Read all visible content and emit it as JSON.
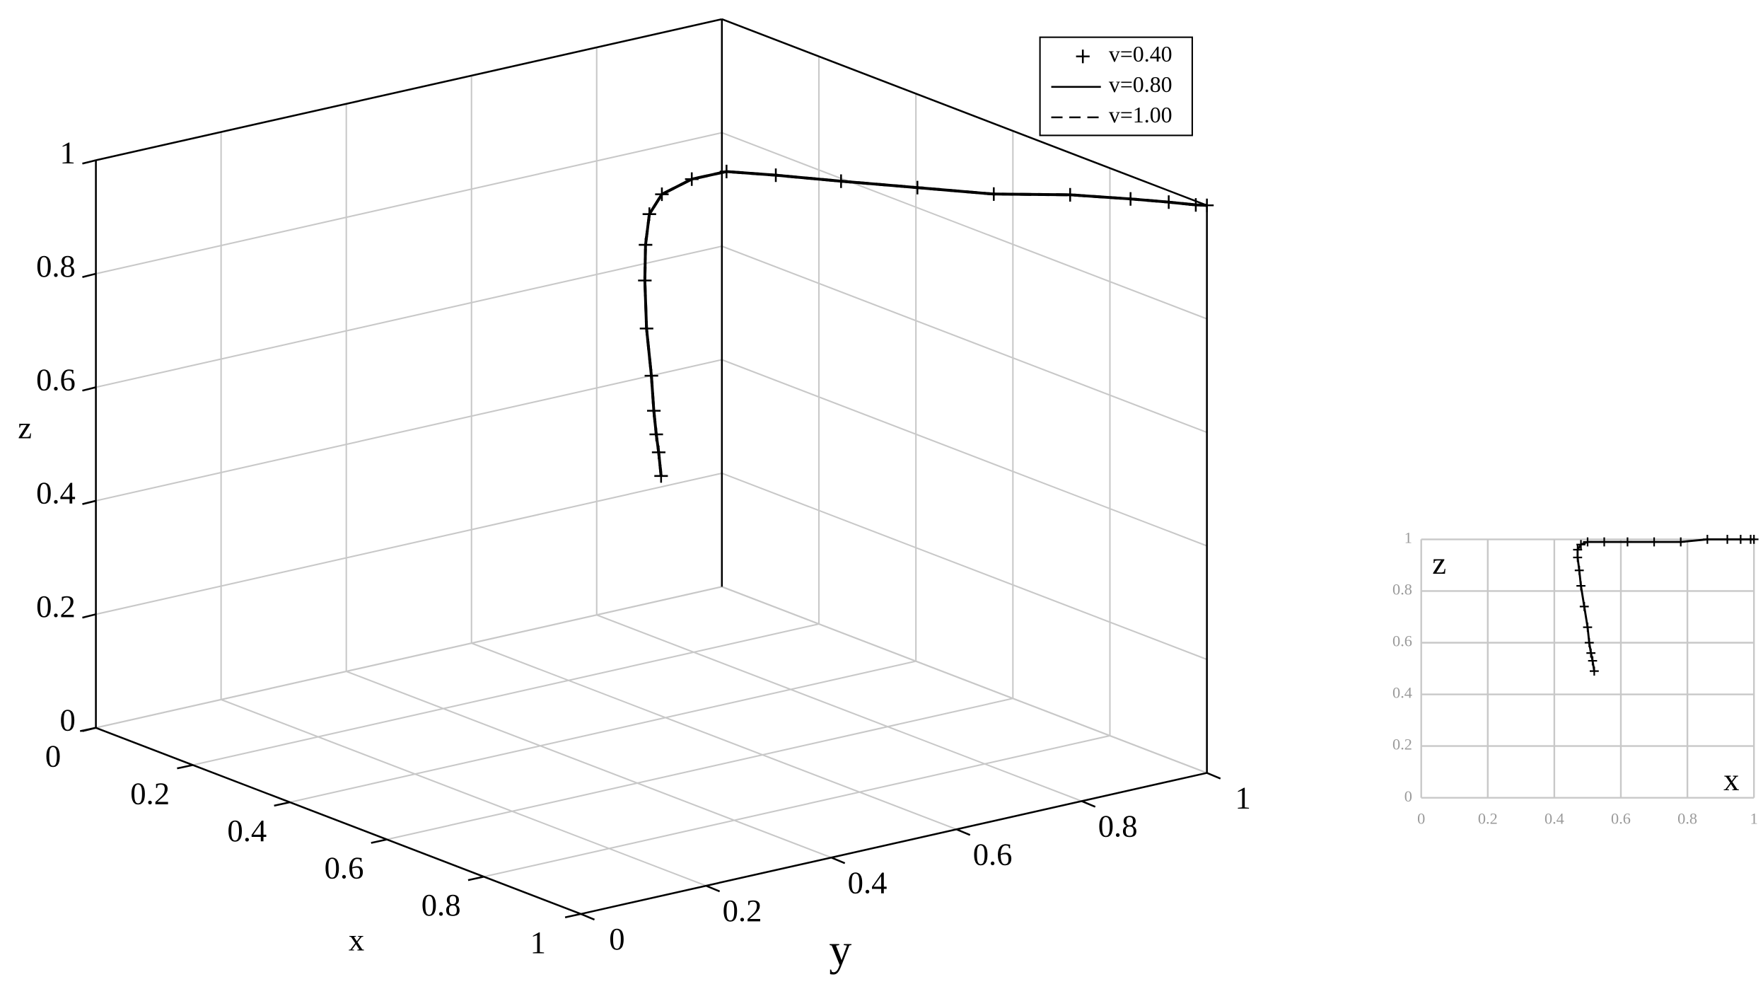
{
  "chart_data": [
    {
      "type": "line3d",
      "xlabel": "x",
      "ylabel": "y",
      "zlabel": "z",
      "xlim": [
        0,
        1
      ],
      "ylim": [
        0,
        1
      ],
      "zlim": [
        0,
        1
      ],
      "xticks": [
        0,
        0.2,
        0.4,
        0.6,
        0.8,
        1
      ],
      "yticks": [
        0,
        0.2,
        0.4,
        0.6,
        0.8,
        1
      ],
      "zticks": [
        0,
        0.2,
        0.4,
        0.6,
        0.8,
        1
      ],
      "grid": true,
      "legend": "upper right",
      "series": [
        {
          "name": "v=0.40",
          "color": "#000000",
          "marker": "+",
          "linestyle": "none",
          "x": [
            0.52,
            0.515,
            0.51,
            0.505,
            0.5,
            0.49,
            0.48,
            0.475,
            0.47,
            0.47,
            0.48,
            0.5,
            0.55,
            0.62,
            0.7,
            0.78,
            0.86,
            0.92,
            0.96,
            0.99,
            1.0
          ],
          "y": [
            0.5,
            0.5,
            0.5,
            0.5,
            0.5,
            0.5,
            0.505,
            0.51,
            0.52,
            0.54,
            0.58,
            0.62,
            0.66,
            0.71,
            0.77,
            0.83,
            0.89,
            0.94,
            0.97,
            0.99,
            1.0
          ],
          "z": [
            0.49,
            0.53,
            0.56,
            0.6,
            0.66,
            0.74,
            0.82,
            0.88,
            0.93,
            0.96,
            0.98,
            0.99,
            0.99,
            0.99,
            0.99,
            0.99,
            1.0,
            1.0,
            1.0,
            1.0,
            1.0
          ]
        },
        {
          "name": "v=0.80",
          "color": "#000000",
          "marker": "none",
          "linestyle": "solid",
          "x": [
            0.52,
            0.515,
            0.51,
            0.505,
            0.5,
            0.49,
            0.48,
            0.475,
            0.47,
            0.47,
            0.48,
            0.5,
            0.55,
            0.62,
            0.7,
            0.78,
            0.86,
            0.92,
            0.96,
            0.99,
            1.0
          ],
          "y": [
            0.5,
            0.5,
            0.5,
            0.5,
            0.5,
            0.5,
            0.505,
            0.51,
            0.52,
            0.54,
            0.58,
            0.62,
            0.66,
            0.71,
            0.77,
            0.83,
            0.89,
            0.94,
            0.97,
            0.99,
            1.0
          ],
          "z": [
            0.49,
            0.53,
            0.56,
            0.6,
            0.66,
            0.74,
            0.82,
            0.88,
            0.93,
            0.96,
            0.98,
            0.99,
            0.99,
            0.99,
            0.99,
            0.99,
            1.0,
            1.0,
            1.0,
            1.0,
            1.0
          ]
        },
        {
          "name": "v=1.00",
          "color": "#000000",
          "marker": "none",
          "linestyle": "dashed",
          "x": [
            0.52,
            0.515,
            0.51,
            0.505,
            0.5,
            0.49,
            0.48,
            0.475,
            0.47,
            0.47,
            0.48,
            0.5,
            0.55,
            0.62,
            0.7,
            0.78,
            0.86,
            0.92,
            0.96,
            0.99,
            1.0
          ],
          "y": [
            0.5,
            0.5,
            0.5,
            0.5,
            0.5,
            0.5,
            0.505,
            0.51,
            0.52,
            0.54,
            0.58,
            0.62,
            0.66,
            0.71,
            0.77,
            0.83,
            0.89,
            0.94,
            0.97,
            0.99,
            1.0
          ],
          "z": [
            0.49,
            0.53,
            0.56,
            0.6,
            0.66,
            0.74,
            0.82,
            0.88,
            0.93,
            0.96,
            0.98,
            0.99,
            0.99,
            0.99,
            0.99,
            0.99,
            1.0,
            1.0,
            1.0,
            1.0,
            1.0
          ]
        }
      ]
    },
    {
      "type": "line",
      "xlabel": "x",
      "ylabel": "z",
      "xlim": [
        0,
        1
      ],
      "ylim": [
        0,
        1
      ],
      "xticks": [
        0,
        0.2,
        0.4,
        0.6,
        0.8,
        1
      ],
      "yticks": [
        0,
        0.2,
        0.4,
        0.6,
        0.8,
        1
      ],
      "grid": true,
      "color": "#000000",
      "marker": "+",
      "x": [
        0.52,
        0.515,
        0.51,
        0.505,
        0.5,
        0.49,
        0.48,
        0.475,
        0.47,
        0.47,
        0.48,
        0.5,
        0.55,
        0.62,
        0.7,
        0.78,
        0.86,
        0.92,
        0.96,
        0.99,
        1.0
      ],
      "values": [
        0.49,
        0.53,
        0.56,
        0.6,
        0.66,
        0.74,
        0.82,
        0.88,
        0.93,
        0.96,
        0.98,
        0.99,
        0.99,
        0.99,
        0.99,
        0.99,
        1.0,
        1.0,
        1.0,
        1.0,
        1.0
      ]
    }
  ]
}
